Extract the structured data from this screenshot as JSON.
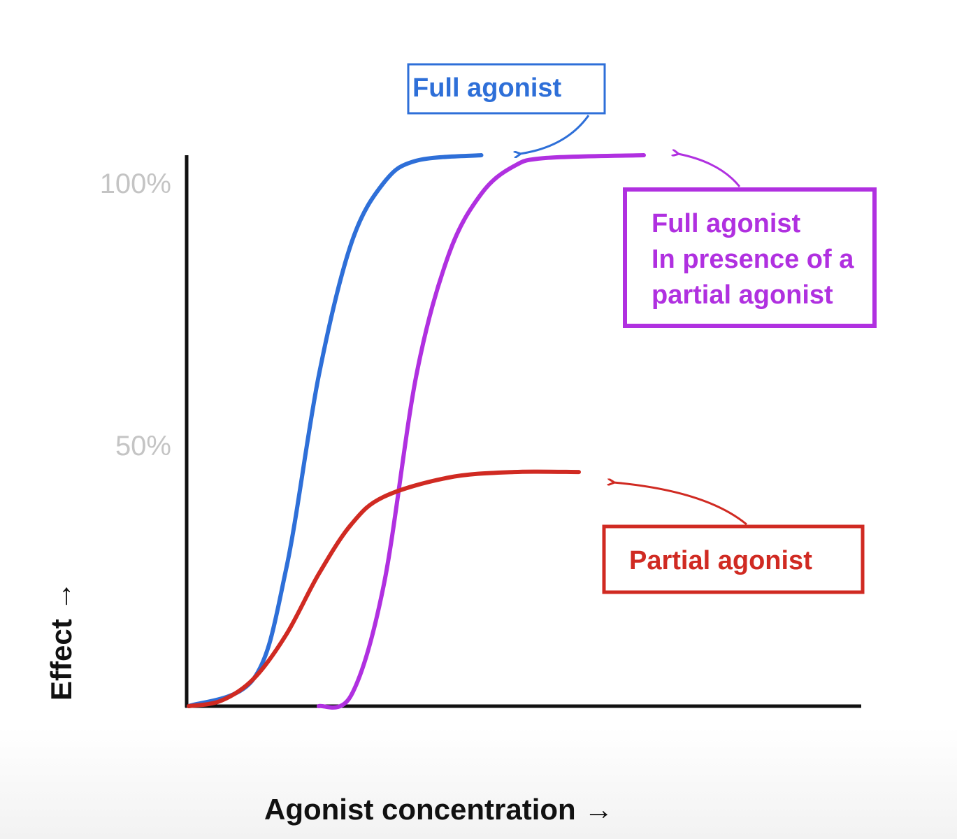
{
  "chart_data": {
    "type": "line",
    "xlabel": "Agonist concentration →",
    "ylabel": "Effect →",
    "y_ticks": [
      "100%",
      "50%"
    ],
    "y_tick_values": [
      100,
      50
    ],
    "ylim": [
      0,
      100
    ],
    "xlim": [
      0,
      10
    ],
    "grid": false,
    "legend": "none",
    "series": [
      {
        "name": "Full agonist",
        "color": "#2e6fd8",
        "x": [
          0,
          1,
          1.5,
          2,
          2.5,
          3,
          3.5,
          4.5
        ],
        "y": [
          0,
          5,
          25,
          60,
          84,
          95,
          99,
          100
        ]
      },
      {
        "name": "Full agonist\nIn presence of a\npartial agonist",
        "color": "#b030e0",
        "x": [
          2,
          2.5,
          3,
          3.5,
          4,
          4.5,
          5,
          5.5,
          7
        ],
        "y": [
          0,
          2,
          22,
          60,
          82,
          93,
          98,
          99.5,
          100
        ]
      },
      {
        "name": "Partial agonist",
        "color": "#d02a22",
        "x": [
          0,
          0.5,
          1,
          1.5,
          2,
          2.5,
          3,
          4,
          5,
          6
        ],
        "y": [
          0,
          1,
          5,
          13,
          24,
          33,
          38,
          41.5,
          42.5,
          42.5
        ]
      }
    ],
    "annotations": [
      {
        "series": 0,
        "color": "#2e6fd8",
        "lines": [
          "Full agonist"
        ]
      },
      {
        "series": 1,
        "color": "#b030e0",
        "lines": [
          "Full agonist",
          "In presence of a",
          "partial agonist"
        ]
      },
      {
        "series": 2,
        "color": "#d02a22",
        "lines": [
          "Partial agonist"
        ]
      }
    ]
  },
  "colors": {
    "axis": "#111111",
    "tick_label": "#c4c4c4"
  }
}
